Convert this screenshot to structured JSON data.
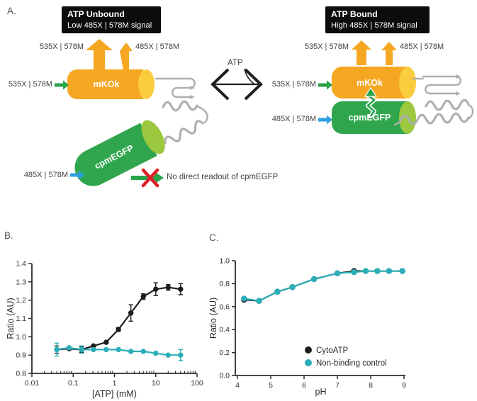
{
  "figure": {
    "panels": {
      "a": "A.",
      "b": "B.",
      "c": "C."
    }
  },
  "panel_a": {
    "left": {
      "title": "ATP Unbound",
      "subtitle": "Low 485X | 578M signal",
      "emission_major_label": "535X | 578M",
      "emission_minor_label": "485X | 578M",
      "excitation_mko_label": "535X | 578M",
      "mko_name": "mKOk",
      "egfp_name": "cpmEGFP",
      "excitation_egfp_label": "485X | 578M",
      "no_readout": "No direct readout of cpmEGFP"
    },
    "atp": "ATP",
    "right": {
      "title": "ATP Bound",
      "subtitle": "High 485X | 578M signal",
      "emission_major_label": "535X | 578M",
      "emission_minor_label": "485X | 578M",
      "excitation_mko_label": "535X | 578M",
      "mko_name": "mKOk",
      "egfp_name": "cpmEGFP",
      "excitation_egfp_label": "485X | 578M"
    },
    "colors": {
      "mko_body": "#F6A722",
      "mko_cap": "#FACC3E",
      "egfp_body": "#2FA64D",
      "egfp_cap": "#9BC83E",
      "arrow_green": "#27A349",
      "arrow_blue": "#2D9FE0",
      "arrow_orange": "#F6A722",
      "linker": "#AFAFAF",
      "cross_red": "#E01F26",
      "callout_bg": "#0C0C0C",
      "callout_text": "#FFFFFF"
    }
  },
  "chart_data": [
    {
      "id": "atp-titration",
      "type": "line",
      "xscale": "log",
      "xlabel": "[ATP] (mM)",
      "ylabel": "Ratio (AU)",
      "xlim": [
        0.01,
        100
      ],
      "ylim": [
        0.8,
        1.4
      ],
      "xticks": [
        0.01,
        0.1,
        1,
        10,
        100
      ],
      "xtick_labels": [
        "0.01",
        "0.1",
        "1",
        "10",
        "100"
      ],
      "yticks": [
        0.8,
        0.9,
        1.0,
        1.1,
        1.2,
        1.3,
        1.4
      ],
      "ytick_labels": [
        "0.8",
        "0.9",
        "1.0",
        "1.1",
        "1.2",
        "1.3",
        "1.4"
      ],
      "grid": false,
      "legend": false,
      "series": [
        {
          "name": "CytoATP",
          "color": "#1C1C1C",
          "x": [
            0.04,
            0.08,
            0.16,
            0.31,
            0.63,
            1.25,
            2.5,
            5,
            10,
            20,
            40
          ],
          "y": [
            0.93,
            0.935,
            0.93,
            0.95,
            0.97,
            1.04,
            1.13,
            1.22,
            1.26,
            1.27,
            1.26
          ],
          "yerr": [
            0.02,
            0.005,
            0.015,
            0.005,
            0.005,
            0.01,
            0.045,
            0.015,
            0.035,
            0.015,
            0.03
          ]
        },
        {
          "name": "Non-binding control",
          "color": "#2AAFB8",
          "x": [
            0.04,
            0.08,
            0.16,
            0.31,
            0.63,
            1.25,
            2.5,
            5,
            10,
            20,
            40
          ],
          "y": [
            0.93,
            0.94,
            0.93,
            0.93,
            0.93,
            0.93,
            0.92,
            0.92,
            0.91,
            0.9,
            0.9
          ],
          "yerr": [
            0.035,
            0.005,
            0.02,
            0.005,
            0.005,
            0.005,
            0.005,
            0.005,
            0.005,
            0.005,
            0.03
          ]
        }
      ]
    },
    {
      "id": "ph-sensitivity",
      "type": "line",
      "xscale": "linear",
      "xlabel": "pH",
      "ylabel": "Ratio (AU)",
      "xlim": [
        4,
        9
      ],
      "ylim": [
        0,
        1
      ],
      "xticks": [
        4,
        5,
        6,
        7,
        8,
        9
      ],
      "xtick_labels": [
        "4",
        "5",
        "6",
        "7",
        "8",
        "9"
      ],
      "yticks": [
        0,
        0.2,
        0.4,
        0.6,
        0.8,
        1.0
      ],
      "ytick_labels": [
        "0.0",
        "0.2",
        "0.4",
        "0.6",
        "0.8",
        "1.0"
      ],
      "grid": false,
      "legend": true,
      "series": [
        {
          "name": "CytoATP",
          "color": "#1C1C1C",
          "x": [
            4.2,
            4.65,
            5.2,
            5.65,
            6.3,
            7.0,
            7.5,
            7.85,
            8.2,
            8.55,
            8.95
          ],
          "y": [
            0.66,
            0.65,
            0.73,
            0.77,
            0.84,
            0.89,
            0.91,
            0.91,
            0.91,
            0.91,
            0.91
          ]
        },
        {
          "name": "Non-binding control",
          "color": "#2AAFB8",
          "x": [
            4.2,
            4.65,
            5.2,
            5.65,
            6.3,
            7.0,
            7.5,
            7.85,
            8.2,
            8.55,
            8.95
          ],
          "y": [
            0.67,
            0.65,
            0.73,
            0.77,
            0.84,
            0.89,
            0.9,
            0.91,
            0.91,
            0.91,
            0.91
          ]
        }
      ]
    }
  ]
}
